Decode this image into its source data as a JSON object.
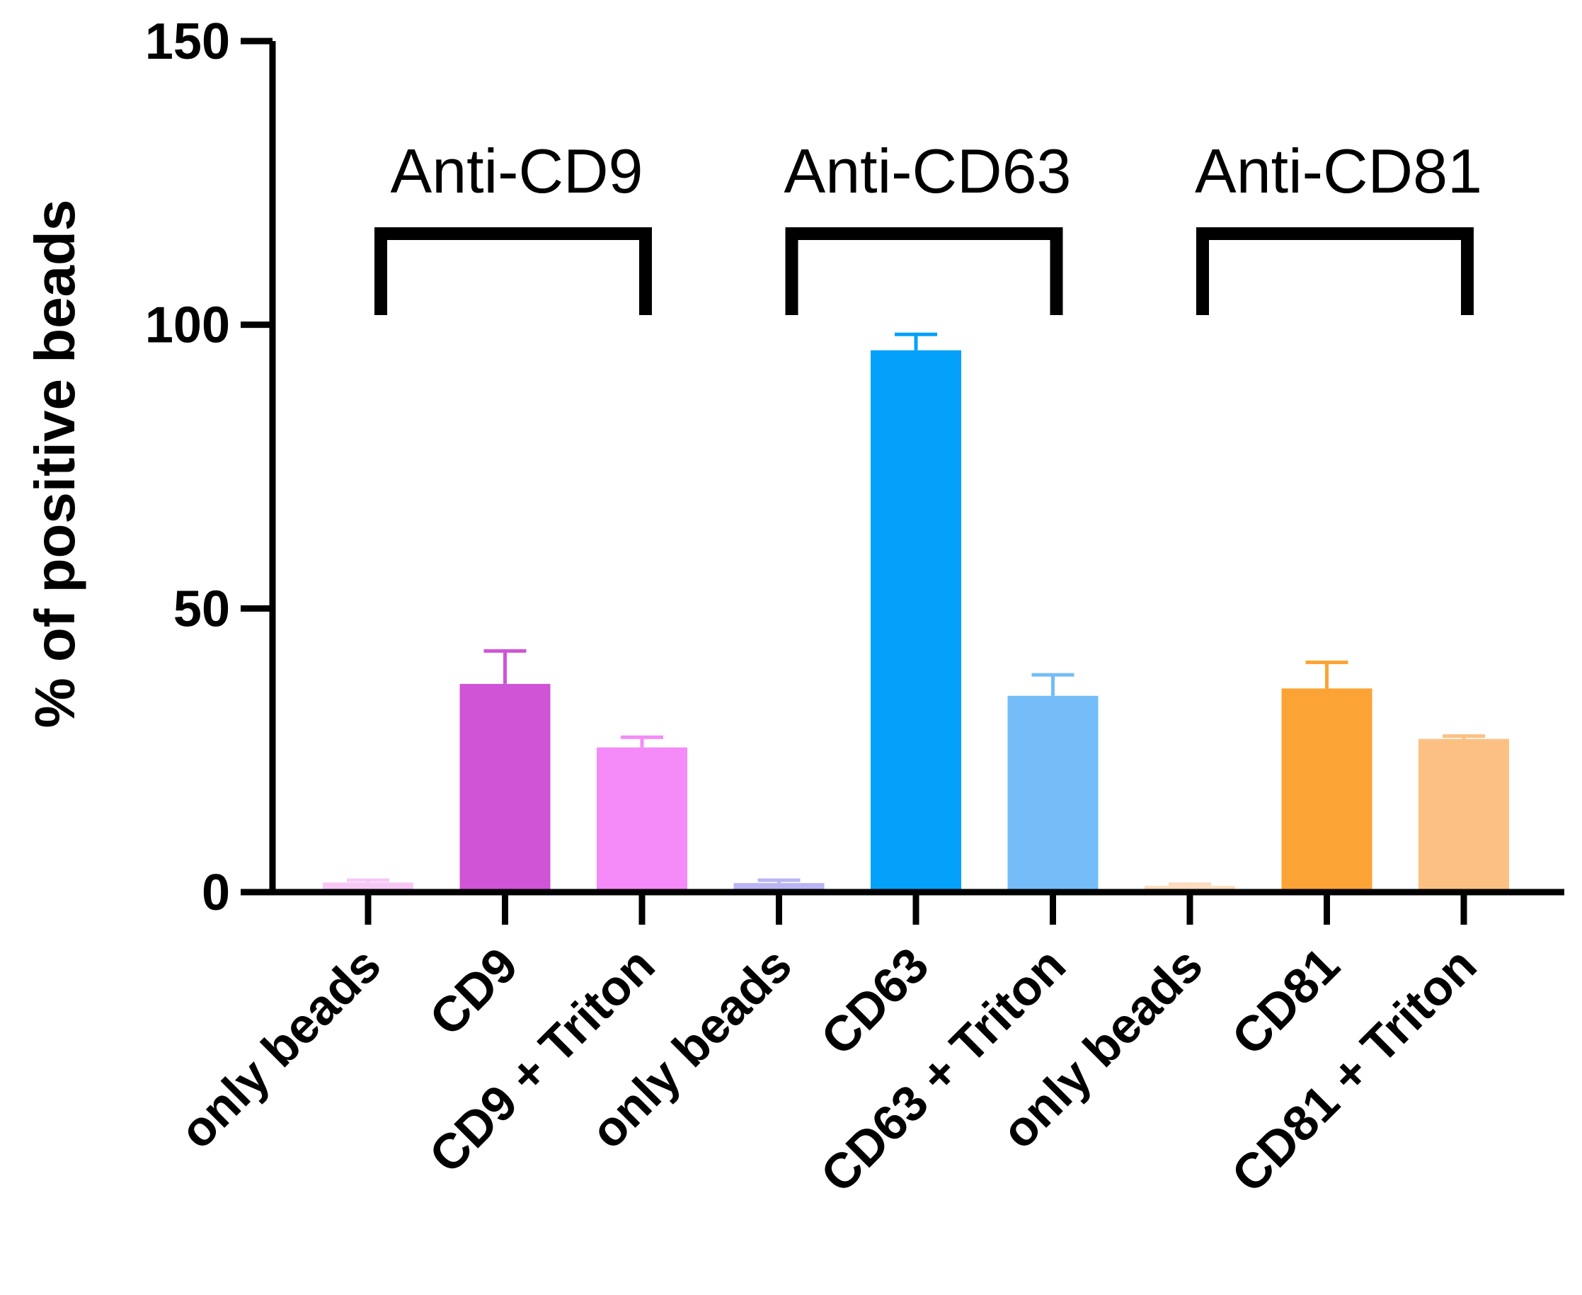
{
  "chart_data": {
    "type": "bar",
    "title": "",
    "xlabel": "",
    "ylabel": "% of positive beads",
    "ylim": [
      0,
      150
    ],
    "yticks": [
      0,
      50,
      100,
      150
    ],
    "categories": [
      "only beads",
      "CD9",
      "CD9 + Triton",
      "only beads",
      "CD63",
      "CD63 + Triton",
      "only beads",
      "CD81",
      "CD81 + Triton"
    ],
    "values": [
      1.7,
      36.7,
      25.5,
      1.6,
      95.5,
      34.6,
      1.1,
      35.9,
      27.0
    ],
    "errors": [
      0.4,
      5.8,
      1.8,
      0.5,
      2.8,
      3.7,
      0.3,
      4.6,
      0.5
    ],
    "colors": [
      "#F7C8F5",
      "#D054D6",
      "#F48BF8",
      "#B9B5F2",
      "#03A1F9",
      "#74BDF8",
      "#FCDCC0",
      "#FBA435",
      "#FCC182"
    ],
    "groups": [
      {
        "label": "Anti-CD9",
        "start": 0,
        "end": 2
      },
      {
        "label": "Anti-CD63",
        "start": 3,
        "end": 5
      },
      {
        "label": "Anti-CD81",
        "start": 6,
        "end": 8
      }
    ],
    "grid": false,
    "legend": "none"
  }
}
